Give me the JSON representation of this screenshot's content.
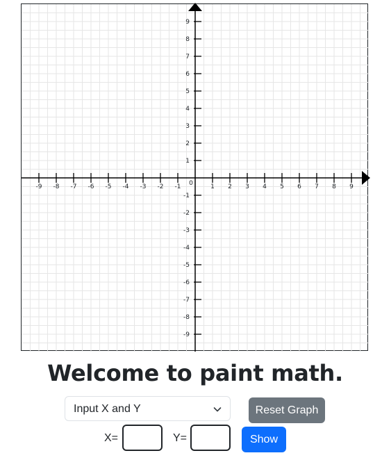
{
  "graph": {
    "x_range": [
      -10,
      10
    ],
    "y_range": [
      -10,
      10
    ],
    "grid": true,
    "x_ticks": [
      "-9",
      "-8",
      "-7",
      "-6",
      "-5",
      "-4",
      "-3",
      "-2",
      "-1",
      "1",
      "2",
      "3",
      "4",
      "5",
      "6",
      "7",
      "8",
      "9"
    ],
    "y_ticks": [
      "9",
      "8",
      "7",
      "6",
      "5",
      "4",
      "3",
      "2",
      "1",
      "-1",
      "-2",
      "-3",
      "-4",
      "-5",
      "-6",
      "-7",
      "-8",
      "-9"
    ],
    "origin_label": "0",
    "colors": {
      "grid": "#e6e6e6",
      "axis": "#000000"
    }
  },
  "title": "Welcome to paint math.",
  "mode_select": {
    "value": "Input X and Y"
  },
  "reset_label": "Reset Graph",
  "x_label": "X=",
  "y_label": "Y=",
  "show_label": "Show",
  "colors": {
    "reset": "#6c757d",
    "show": "#0d6efd"
  }
}
